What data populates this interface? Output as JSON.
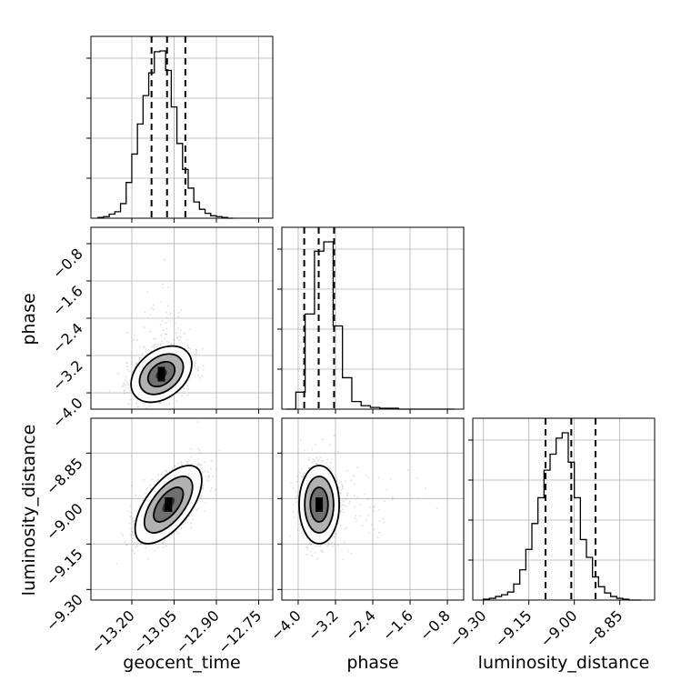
{
  "chart_data": {
    "type": "corner",
    "parameters": [
      "geocent_time",
      "phase",
      "luminosity_distance"
    ],
    "axis_labels": {
      "bottom": [
        "geocent_time",
        "phase",
        "luminosity_distance"
      ],
      "left": [
        "phase",
        "luminosity_distance"
      ]
    },
    "ranges": {
      "geocent_time": [
        -13.345,
        -12.7
      ],
      "phase": [
        -4.35,
        -0.45
      ],
      "luminosity_distance": [
        -9.335,
        -8.735
      ]
    },
    "ticks": {
      "geocent_time": {
        "values": [
          -13.2,
          -13.05,
          -12.9,
          -12.75
        ],
        "labels": [
          "−13.20",
          "−13.05",
          "−12.90",
          "−12.75"
        ]
      },
      "phase": {
        "values": [
          -4.0,
          -3.2,
          -2.4,
          -1.6,
          -0.8
        ],
        "labels": [
          "−4.0",
          "−3.2",
          "−2.4",
          "−1.6",
          "−0.8"
        ]
      },
      "luminosity_distance": {
        "values": [
          -9.3,
          -9.15,
          -9.0,
          -8.85
        ],
        "labels": [
          "−9.30",
          "−9.15",
          "−9.00",
          "−8.85"
        ]
      }
    },
    "histograms": {
      "geocent_time": {
        "bins": [
          -13.32,
          -13.3,
          -13.28,
          -13.26,
          -13.24,
          -13.22,
          -13.2,
          -13.18,
          -13.16,
          -13.14,
          -13.12,
          -13.1,
          -13.08,
          -13.06,
          -13.04,
          -13.02,
          -13.0,
          -12.98,
          -12.96,
          -12.94,
          -12.92,
          -12.9,
          -12.88,
          -12.86,
          -12.84
        ],
        "counts": [
          1,
          2,
          5,
          8,
          18,
          44,
          79,
          116,
          151,
          179,
          205,
          206,
          182,
          137,
          92,
          60,
          37,
          20,
          11,
          6,
          3,
          2,
          1,
          0
        ],
        "quantiles": [
          -13.13,
          -13.075,
          -13.01
        ]
      },
      "phase": {
        "bins": [
          -4.25,
          -4.05,
          -3.85,
          -3.65,
          -3.45,
          -3.25,
          -3.05,
          -2.85,
          -2.65,
          -2.45,
          -2.25,
          -2.05,
          -1.85,
          -1.65,
          -1.45,
          -1.25,
          -1.05,
          -0.85,
          -0.65
        ],
        "counts": [
          0,
          20,
          112,
          186,
          197,
          98,
          37,
          9,
          4,
          2,
          1,
          1,
          0,
          0,
          0,
          0,
          0,
          0
        ],
        "quantiles": [
          -3.87,
          -3.56,
          -3.23
        ]
      },
      "luminosity_distance": {
        "bins": [
          -9.3,
          -9.28,
          -9.26,
          -9.24,
          -9.22,
          -9.2,
          -9.18,
          -9.16,
          -9.14,
          -9.12,
          -9.1,
          -9.08,
          -9.06,
          -9.04,
          -9.02,
          -9.0,
          -8.98,
          -8.96,
          -8.94,
          -8.92,
          -8.9,
          -8.88,
          -8.86,
          -8.84,
          -8.82,
          -8.8,
          -8.78
        ],
        "counts": [
          1,
          2,
          4,
          6,
          9,
          18,
          34,
          57,
          86,
          115,
          146,
          164,
          182,
          188,
          155,
          115,
          68,
          48,
          26,
          15,
          8,
          4,
          2,
          1,
          0,
          0
        ],
        "quantiles": [
          -9.095,
          -9.01,
          -8.93
        ]
      }
    },
    "scatter_panels": [
      {
        "x": "geocent_time",
        "y": "phase",
        "mean": [
          -13.095,
          -3.6
        ],
        "sd": [
          0.05,
          0.28
        ],
        "rho": 0.35,
        "contours": true
      },
      {
        "x": "geocent_time",
        "y": "luminosity_distance",
        "mean": [
          -13.07,
          -9.02
        ],
        "sd": [
          0.055,
          0.06
        ],
        "rho": 0.62,
        "contours": true
      },
      {
        "x": "phase",
        "y": "luminosity_distance",
        "mean": [
          -3.55,
          -9.02
        ],
        "sd": [
          0.2,
          0.06
        ],
        "rho": 0.0,
        "contours": true
      }
    ],
    "style": {
      "hist_color": "#000000",
      "quantile_line": "dashed",
      "grid": true,
      "grid_color": "#b0b0b0",
      "point_color": "#9a9a9a",
      "density_fill": "#707070"
    }
  }
}
